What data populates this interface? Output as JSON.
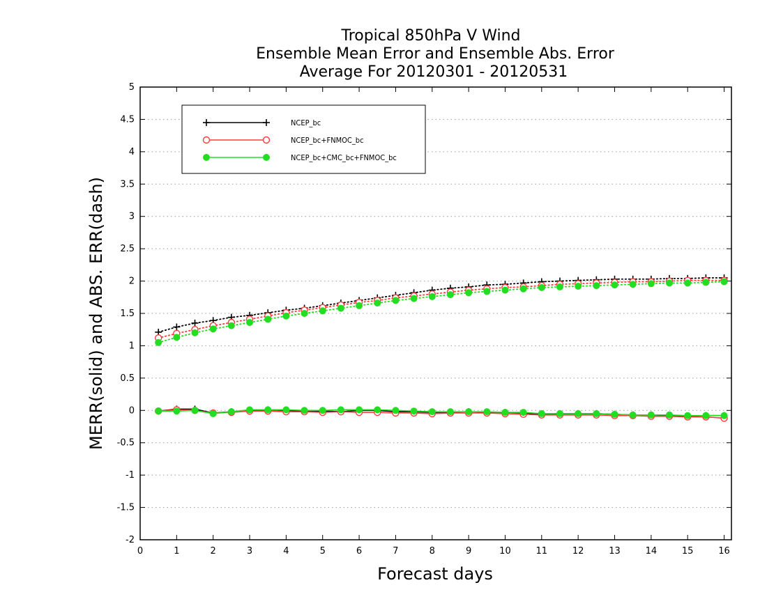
{
  "chart_data": {
    "type": "line",
    "title_lines": [
      "Tropical 850hPa V Wind",
      "Ensemble Mean Error and Ensemble Abs. Error",
      "Average For 20120301 - 20120531"
    ],
    "xlabel": "Forecast days",
    "ylabel": "MERR(solid) and ABS. ERR(dash)",
    "xlim": [
      0,
      16.2
    ],
    "ylim": [
      -2,
      5
    ],
    "xticks": [
      0,
      1,
      2,
      3,
      4,
      5,
      6,
      7,
      8,
      9,
      10,
      11,
      12,
      13,
      14,
      15,
      16
    ],
    "yticks": [
      -2,
      -1.5,
      -1,
      -0.5,
      0,
      0.5,
      1,
      1.5,
      2,
      2.5,
      3,
      3.5,
      4,
      4.5,
      5
    ],
    "ytick_labels": [
      "-2",
      "-1.5",
      "-1",
      "-0.5",
      "0",
      "0.5",
      "1",
      "1.5",
      "2",
      "2.5",
      "3",
      "3.5",
      "4",
      "4.5",
      "5"
    ],
    "grid": true,
    "legend_position": "top-left",
    "x": [
      0.5,
      1,
      1.5,
      2,
      2.5,
      3,
      3.5,
      4,
      4.5,
      5,
      5.5,
      6,
      6.5,
      7,
      7.5,
      8,
      8.5,
      9,
      9.5,
      10,
      10.5,
      11,
      11.5,
      12,
      12.5,
      13,
      13.5,
      14,
      14.5,
      15,
      15.5,
      16
    ],
    "series": [
      {
        "name": "NCEP_bc",
        "color": "#000000",
        "marker": "plus",
        "merr": [
          -0.01,
          0.02,
          0.02,
          -0.04,
          -0.02,
          0.0,
          0.01,
          0.0,
          -0.01,
          -0.01,
          -0.02,
          0.0,
          0.0,
          -0.02,
          -0.02,
          -0.03,
          -0.03,
          -0.02,
          -0.03,
          -0.03,
          -0.04,
          -0.06,
          -0.05,
          -0.05,
          -0.05,
          -0.06,
          -0.07,
          -0.07,
          -0.08,
          -0.09,
          -0.08,
          -0.08
        ],
        "abs_err": [
          1.21,
          1.29,
          1.35,
          1.39,
          1.44,
          1.47,
          1.51,
          1.55,
          1.58,
          1.62,
          1.66,
          1.7,
          1.74,
          1.78,
          1.82,
          1.86,
          1.89,
          1.91,
          1.94,
          1.95,
          1.97,
          1.99,
          2.0,
          2.01,
          2.02,
          2.03,
          2.03,
          2.03,
          2.04,
          2.04,
          2.05,
          2.05
        ]
      },
      {
        "name": "NCEP_bc+FNMOC_bc",
        "color": "#ff3b3b",
        "marker": "open-circle",
        "merr": [
          -0.01,
          0.01,
          0.0,
          -0.04,
          -0.03,
          -0.01,
          -0.01,
          -0.02,
          -0.02,
          -0.03,
          -0.02,
          -0.03,
          -0.03,
          -0.04,
          -0.04,
          -0.05,
          -0.04,
          -0.04,
          -0.04,
          -0.05,
          -0.06,
          -0.07,
          -0.07,
          -0.07,
          -0.07,
          -0.08,
          -0.08,
          -0.09,
          -0.09,
          -0.1,
          -0.1,
          -0.12
        ],
        "abs_err": [
          1.12,
          1.19,
          1.25,
          1.31,
          1.36,
          1.41,
          1.46,
          1.51,
          1.55,
          1.59,
          1.63,
          1.67,
          1.7,
          1.74,
          1.77,
          1.8,
          1.83,
          1.86,
          1.88,
          1.9,
          1.91,
          1.93,
          1.95,
          1.96,
          1.97,
          1.98,
          1.99,
          1.99,
          2.0,
          2.01,
          2.01,
          2.01
        ]
      },
      {
        "name": "NCEP_bc+CMC_bc+FNMOC_bc",
        "color": "#22dd22",
        "marker": "filled-circle",
        "merr": [
          -0.01,
          -0.01,
          0.0,
          -0.05,
          -0.02,
          0.01,
          0.01,
          0.01,
          0.0,
          0.0,
          0.01,
          0.01,
          0.01,
          0.0,
          -0.01,
          -0.02,
          -0.02,
          -0.02,
          -0.02,
          -0.03,
          -0.03,
          -0.05,
          -0.05,
          -0.05,
          -0.05,
          -0.06,
          -0.07,
          -0.07,
          -0.07,
          -0.08,
          -0.08,
          -0.08
        ],
        "abs_err": [
          1.05,
          1.13,
          1.2,
          1.26,
          1.31,
          1.36,
          1.41,
          1.46,
          1.5,
          1.54,
          1.58,
          1.62,
          1.66,
          1.7,
          1.73,
          1.76,
          1.79,
          1.82,
          1.84,
          1.86,
          1.88,
          1.9,
          1.91,
          1.92,
          1.93,
          1.94,
          1.95,
          1.96,
          1.97,
          1.97,
          1.98,
          1.99
        ]
      }
    ]
  }
}
